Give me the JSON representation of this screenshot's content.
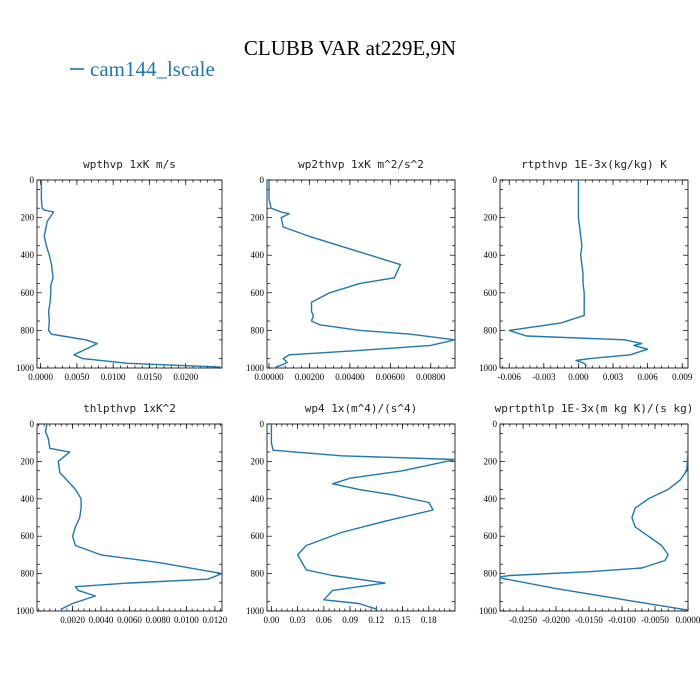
{
  "figure": {
    "title": "CLUBB VAR at229E,9N",
    "legend": [
      {
        "name": "cam144_lscale",
        "color": "#1f77b4"
      }
    ]
  },
  "chart_data": [
    {
      "type": "line",
      "title": "wpthvp   1xK m/s",
      "xlim": [
        -0.0005,
        0.025
      ],
      "ylim": [
        1000,
        0
      ],
      "xticks": [
        0,
        0.005,
        0.01,
        0.015,
        0.02
      ],
      "xtick_labels": [
        "0.0000",
        "0.0050",
        "0.0100",
        "0.0150",
        "0.0200"
      ],
      "yticks": [
        0,
        200,
        400,
        600,
        800,
        1000
      ],
      "ytick_labels": [
        "0",
        "200",
        "400",
        "600",
        "800",
        "1000"
      ],
      "series": [
        {
          "color": "#1f77b4",
          "x": [
            0.0001,
            0.0001,
            0.0002,
            0.0005,
            0.0018,
            0.0009,
            0.0006,
            0.0005,
            0.0008,
            0.0012,
            0.0015,
            0.0017,
            0.0014,
            0.0014,
            0.0013,
            0.0011,
            0.0012,
            0.0011,
            0.0015,
            0.003,
            0.0062,
            0.0078,
            0.0062,
            0.0046,
            0.0058,
            0.012,
            0.0248
          ],
          "y": [
            0,
            100,
            150,
            160,
            170,
            220,
            280,
            300,
            350,
            400,
            450,
            520,
            560,
            600,
            650,
            700,
            750,
            800,
            820,
            830,
            850,
            870,
            900,
            930,
            950,
            975,
            995
          ]
        }
      ]
    },
    {
      "type": "line",
      "title": "wp2thvp   1xK m^2/s^2",
      "xlim": [
        -0.0001,
        0.0092
      ],
      "ylim": [
        1000,
        0
      ],
      "xticks": [
        0,
        0.002,
        0.004,
        0.006,
        0.008
      ],
      "xtick_labels": [
        "0.00000",
        "0.00200",
        "0.00400",
        "0.00600",
        "0.00800"
      ],
      "yticks": [
        0,
        200,
        400,
        600,
        800,
        1000
      ],
      "ytick_labels": [
        "0",
        "200",
        "400",
        "600",
        "800",
        "1000"
      ],
      "series": [
        {
          "color": "#1f77b4",
          "x": [
            0.0,
            0.0,
            0.0001,
            0.0006,
            0.001,
            0.0006,
            0.0007,
            0.002,
            0.0035,
            0.005,
            0.0065,
            0.0062,
            0.0045,
            0.003,
            0.0021,
            0.0021,
            0.0022,
            0.0021,
            0.0025,
            0.0045,
            0.007,
            0.0092,
            0.008,
            0.004,
            0.001,
            0.0007,
            0.0009,
            0.0006,
            0.0003
          ],
          "y": [
            0,
            100,
            150,
            170,
            180,
            200,
            250,
            300,
            350,
            400,
            450,
            520,
            550,
            600,
            650,
            700,
            720,
            750,
            770,
            800,
            820,
            850,
            880,
            910,
            930,
            950,
            970,
            985,
            998
          ]
        }
      ]
    },
    {
      "type": "line",
      "title": "rtpthvp   1E-3x(kg/kg) K",
      "xlim": [
        -0.0068,
        0.0095
      ],
      "ylim": [
        1000,
        0
      ],
      "xticks": [
        -0.006,
        -0.003,
        0,
        0.003,
        0.006,
        0.009
      ],
      "xtick_labels": [
        "-0.006",
        "-0.003",
        "0.000",
        "0.003",
        "0.006",
        "0.009"
      ],
      "yticks": [
        0,
        200,
        400,
        600,
        800,
        1000
      ],
      "ytick_labels": [
        "0",
        "200",
        "400",
        "600",
        "800",
        "1000"
      ],
      "series": [
        {
          "color": "#1f77b4",
          "x": [
            0.0,
            0.0,
            0.0,
            0.0001,
            0.0002,
            0.0003,
            0.0002,
            0.0003,
            0.0004,
            0.0004,
            0.0005,
            0.0005,
            0.0005,
            -0.0015,
            -0.006,
            -0.0045,
            0.004,
            0.0055,
            0.0048,
            0.006,
            0.0045,
            0.001,
            -0.0002,
            0.0005,
            0.0007
          ],
          "y": [
            0,
            100,
            200,
            250,
            300,
            350,
            400,
            450,
            500,
            550,
            600,
            650,
            720,
            760,
            800,
            830,
            850,
            870,
            880,
            900,
            930,
            950,
            960,
            975,
            990
          ]
        }
      ]
    },
    {
      "type": "line",
      "title": "thlpthvp   1xK^2",
      "xlim": [
        -0.0005,
        0.0125
      ],
      "ylim": [
        1000,
        0
      ],
      "xticks": [
        0.002,
        0.004,
        0.006,
        0.008,
        0.01,
        0.012
      ],
      "xtick_labels": [
        "0.0020",
        "0.0040",
        "0.0060",
        "0.0080",
        "0.0100",
        "0.0120"
      ],
      "yticks": [
        0,
        200,
        400,
        600,
        800,
        1000
      ],
      "ytick_labels": [
        "0",
        "200",
        "400",
        "600",
        "800",
        "1000"
      ],
      "series": [
        {
          "color": "#1f77b4",
          "x": [
            0.0002,
            0.0001,
            0.0003,
            0.0004,
            0.0018,
            0.001,
            0.0011,
            0.0016,
            0.0022,
            0.0026,
            0.0026,
            0.0025,
            0.0022,
            0.002,
            0.0022,
            0.004,
            0.008,
            0.0125,
            0.0115,
            0.006,
            0.0022,
            0.0024,
            0.0036,
            0.002,
            0.0012
          ],
          "y": [
            0,
            40,
            80,
            130,
            150,
            200,
            260,
            300,
            350,
            400,
            450,
            500,
            550,
            600,
            650,
            700,
            740,
            800,
            830,
            850,
            870,
            890,
            920,
            960,
            990
          ]
        }
      ]
    },
    {
      "type": "line",
      "title": "wp4   1x(m^4)/(s^4)",
      "xlim": [
        -0.005,
        0.21
      ],
      "ylim": [
        1000,
        0
      ],
      "xticks": [
        0,
        0.03,
        0.06,
        0.09,
        0.12,
        0.15,
        0.18
      ],
      "xtick_labels": [
        "0.00",
        "0.03",
        "0.06",
        "0.09",
        "0.12",
        "0.15",
        "0.18"
      ],
      "yticks": [
        0,
        200,
        400,
        600,
        800,
        1000
      ],
      "ytick_labels": [
        "0",
        "200",
        "400",
        "600",
        "800",
        "1000"
      ],
      "series": [
        {
          "color": "#1f77b4",
          "x": [
            0.0,
            0.0,
            0.002,
            0.08,
            0.21,
            0.15,
            0.09,
            0.07,
            0.1,
            0.14,
            0.18,
            0.185,
            0.13,
            0.08,
            0.04,
            0.03,
            0.04,
            0.07,
            0.13,
            0.07,
            0.06,
            0.1,
            0.12
          ],
          "y": [
            0,
            100,
            140,
            170,
            190,
            250,
            290,
            320,
            350,
            380,
            420,
            460,
            520,
            580,
            650,
            700,
            780,
            810,
            850,
            890,
            940,
            960,
            990
          ]
        }
      ]
    },
    {
      "type": "line",
      "title": "wprtpthlp   1E-3x(m kg K)/(s kg)",
      "xlim": [
        -0.0285,
        0.0
      ],
      "ylim": [
        1000,
        0
      ],
      "xticks": [
        -0.025,
        -0.02,
        -0.015,
        -0.01,
        -0.005,
        0.0
      ],
      "xtick_labels": [
        "-0.0250",
        "-0.0200",
        "-0.0150",
        "-0.0100",
        "-0.0050",
        "0.0000"
      ],
      "yticks": [
        0,
        200,
        400,
        600,
        800,
        1000
      ],
      "ytick_labels": [
        "0",
        "200",
        "400",
        "600",
        "800",
        "1000"
      ],
      "series": [
        {
          "color": "#1f77b4",
          "x": [
            0.0,
            0.0,
            -0.0002,
            -0.0012,
            -0.003,
            -0.006,
            -0.008,
            -0.0085,
            -0.008,
            -0.006,
            -0.004,
            -0.003,
            -0.0035,
            -0.007,
            -0.015,
            -0.027,
            -0.029,
            -0.02,
            -0.008,
            0.0
          ],
          "y": [
            0,
            150,
            250,
            300,
            350,
            400,
            450,
            500,
            550,
            600,
            650,
            700,
            730,
            770,
            790,
            810,
            820,
            880,
            950,
            995
          ]
        }
      ]
    }
  ]
}
